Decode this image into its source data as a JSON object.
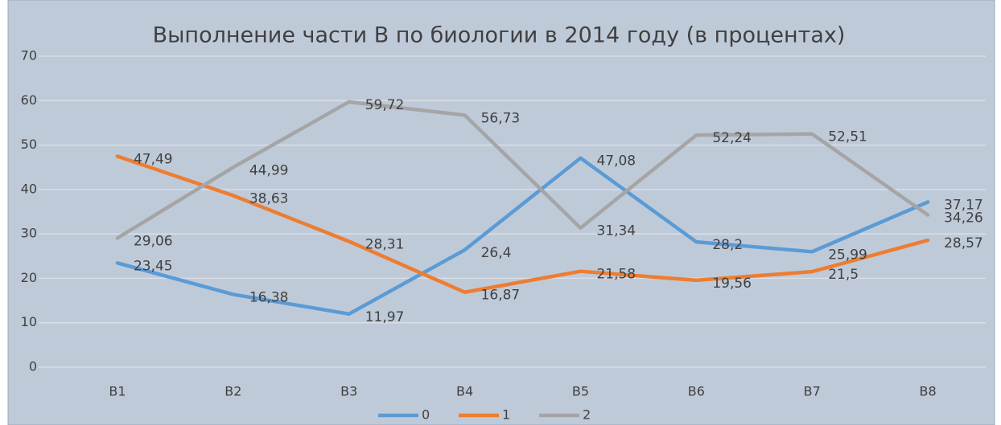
{
  "chart_data": {
    "type": "line",
    "title": "Выполнение части В по биологии в 2014 году (в процентах)",
    "categories": [
      "В1",
      "В2",
      "В3",
      "В4",
      "В5",
      "В6",
      "В7",
      "В8"
    ],
    "series": [
      {
        "name": "0",
        "color": "#5b9bd5",
        "values": [
          23.45,
          16.38,
          11.97,
          26.4,
          47.08,
          28.2,
          25.99,
          37.17
        ],
        "value_labels": [
          "23,45",
          "16,38",
          "11,97",
          "26,4",
          "47,08",
          "28,2",
          "25,99",
          "37,17"
        ]
      },
      {
        "name": "1",
        "color": "#ed7d31",
        "values": [
          47.49,
          38.63,
          28.31,
          16.87,
          21.58,
          19.56,
          21.5,
          28.57
        ],
        "value_labels": [
          "47,49",
          "38,63",
          "28,31",
          "16,87",
          "21,58",
          "19,56",
          "21,5",
          "28,57"
        ]
      },
      {
        "name": "2",
        "color": "#a5a5a5",
        "values": [
          29.06,
          44.99,
          59.72,
          56.73,
          31.34,
          52.24,
          52.51,
          34.26
        ],
        "value_labels": [
          "29,06",
          "44,99",
          "59,72",
          "56,73",
          "31,34",
          "52,24",
          "52,51",
          "34,26"
        ]
      }
    ],
    "ylim": [
      0,
      70
    ],
    "yticks": [
      0,
      10,
      20,
      30,
      40,
      50,
      60,
      70
    ],
    "grid": true,
    "legend": "bottom"
  }
}
